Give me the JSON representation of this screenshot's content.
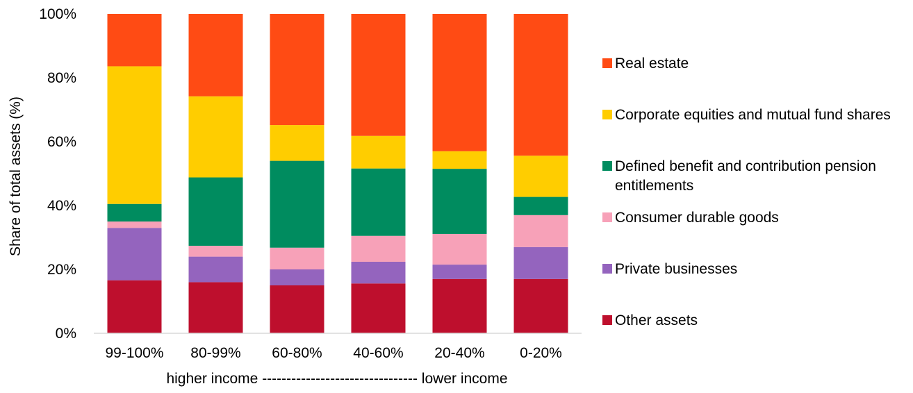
{
  "chart_data": {
    "type": "bar",
    "stacked": true,
    "ylabel": "Share of total assets (%)",
    "xlabel": "higher income -------------------------------- lower income",
    "ylim": [
      0,
      100
    ],
    "yticks": [
      "0%",
      "20%",
      "40%",
      "60%",
      "80%",
      "100%"
    ],
    "categories": [
      "99-100%",
      "80-99%",
      "60-80%",
      "40-60%",
      "20-40%",
      "0-20%"
    ],
    "series": [
      {
        "name": "Other assets",
        "color": "#be0f2d",
        "values": [
          16.6,
          16,
          15,
          15.6,
          17,
          17
        ]
      },
      {
        "name": "Private businesses",
        "color": "#9464be",
        "values": [
          16.4,
          8,
          5,
          6.8,
          4.5,
          10
        ]
      },
      {
        "name": "Consumer durable goods",
        "color": "#f7a1b8",
        "values": [
          2,
          3.4,
          6.8,
          8.1,
          9.6,
          10
        ]
      },
      {
        "name": "Defined benefit and contribution pension entitlements",
        "color": "#008c5f",
        "values": [
          5.5,
          21.4,
          27.2,
          21.1,
          20.4,
          5.7
        ]
      },
      {
        "name": "Corporate equities and mutual fund shares",
        "color": "#ffcd00",
        "values": [
          43.1,
          25.4,
          11.2,
          10.2,
          5.5,
          12.9
        ]
      },
      {
        "name": "Real estate",
        "color": "#ff4b14",
        "values": [
          16.4,
          25.8,
          34.8,
          38.2,
          43,
          44.4
        ]
      }
    ],
    "legend_position": "right"
  }
}
